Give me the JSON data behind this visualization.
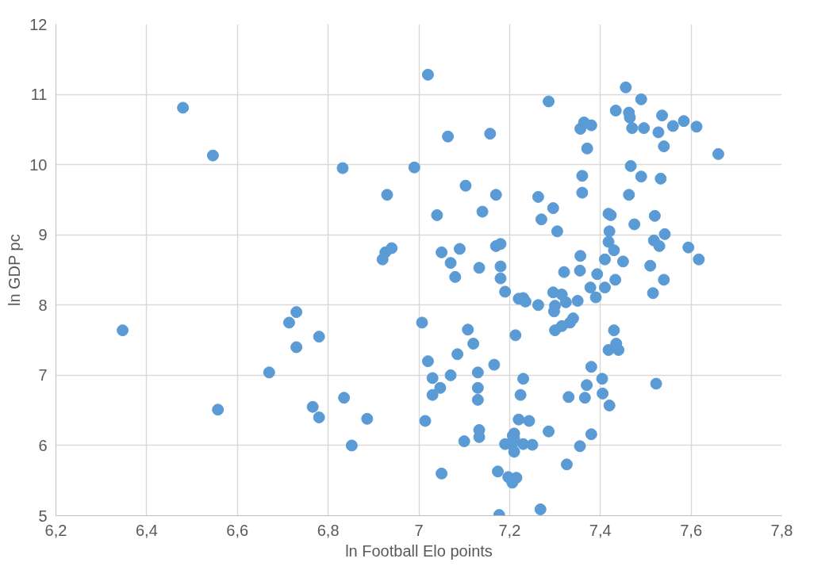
{
  "chart_data": {
    "type": "scatter",
    "xlabel": "ln Football Elo points",
    "ylabel": "ln GDP pc",
    "x": [
      6.347,
      6.48,
      6.546,
      6.557,
      6.67,
      6.714,
      6.73,
      6.73,
      6.766,
      6.78,
      6.78,
      6.832,
      6.835,
      6.852,
      6.886,
      6.92,
      6.926,
      6.93,
      6.94,
      6.99,
      7.007,
      7.014,
      7.02,
      7.02,
      7.03,
      7.03,
      7.04,
      7.047,
      7.05,
      7.05,
      7.064,
      7.07,
      7.07,
      7.08,
      7.085,
      7.09,
      7.1,
      7.103,
      7.108,
      7.12,
      7.13,
      7.13,
      7.13,
      7.133,
      7.133,
      7.133,
      7.14,
      7.157,
      7.166,
      7.17,
      7.17,
      7.174,
      7.18,
      7.18,
      7.18,
      7.177,
      7.19,
      7.19,
      7.197,
      7.205,
      7.206,
      7.207,
      7.21,
      7.21,
      7.21,
      7.213,
      7.215,
      7.22,
      7.22,
      7.224,
      7.23,
      7.23,
      7.23,
      7.235,
      7.243,
      7.25,
      7.263,
      7.263,
      7.27,
      7.268,
      7.286,
      7.286,
      7.296,
      7.296,
      7.298,
      7.3,
      7.3,
      7.305,
      7.315,
      7.315,
      7.32,
      7.324,
      7.326,
      7.33,
      7.333,
      7.34,
      7.35,
      7.355,
      7.355,
      7.356,
      7.356,
      7.36,
      7.36,
      7.364,
      7.37,
      7.366,
      7.371,
      7.38,
      7.378,
      7.38,
      7.38,
      7.39,
      7.393,
      7.41,
      7.404,
      7.405,
      7.41,
      7.418,
      7.418,
      7.418,
      7.42,
      7.42,
      7.423,
      7.43,
      7.43,
      7.433,
      7.435,
      7.434,
      7.44,
      7.456,
      7.45,
      7.463,
      7.463,
      7.465,
      7.467,
      7.47,
      7.475,
      7.49,
      7.49,
      7.496,
      7.51,
      7.516,
      7.518,
      7.523,
      7.52,
      7.528,
      7.53,
      7.533,
      7.536,
      7.54,
      7.54,
      7.542,
      7.56,
      7.584,
      7.594,
      7.612,
      7.617,
      7.66
    ],
    "values": [
      7.64,
      10.81,
      10.13,
      6.51,
      7.04,
      7.75,
      7.9,
      7.4,
      6.55,
      6.4,
      7.55,
      9.95,
      6.68,
      6.0,
      6.38,
      8.65,
      8.75,
      9.57,
      8.81,
      9.96,
      7.75,
      6.35,
      11.28,
      7.2,
      6.96,
      6.72,
      9.28,
      6.82,
      5.6,
      8.75,
      10.4,
      8.6,
      7.0,
      8.4,
      7.3,
      8.8,
      6.06,
      9.7,
      7.65,
      7.45,
      7.04,
      6.65,
      6.82,
      8.53,
      6.22,
      6.12,
      9.33,
      10.44,
      7.15,
      9.57,
      8.84,
      5.63,
      8.87,
      8.55,
      8.38,
      5.01,
      8.19,
      6.02,
      5.55,
      6.01,
      5.47,
      6.14,
      6.17,
      5.91,
      6.1,
      7.57,
      5.54,
      8.09,
      6.37,
      6.72,
      6.02,
      6.95,
      8.1,
      8.05,
      6.35,
      6.01,
      8.0,
      9.54,
      9.22,
      5.09,
      10.9,
      6.2,
      8.18,
      9.38,
      7.91,
      7.99,
      7.64,
      9.05,
      7.7,
      8.15,
      8.47,
      8.04,
      5.73,
      6.69,
      7.75,
      7.81,
      8.06,
      8.49,
      5.99,
      8.7,
      10.51,
      9.84,
      9.6,
      10.6,
      6.86,
      6.68,
      10.23,
      10.56,
      8.25,
      7.12,
      6.16,
      8.11,
      8.44,
      8.65,
      6.95,
      6.74,
      8.25,
      7.36,
      8.9,
      9.3,
      6.57,
      9.05,
      9.28,
      8.78,
      7.64,
      8.36,
      7.45,
      10.77,
      7.36,
      11.1,
      8.62,
      10.74,
      9.57,
      10.67,
      9.98,
      10.52,
      9.15,
      10.93,
      9.83,
      10.52,
      8.56,
      8.17,
      8.92,
      6.88,
      9.27,
      10.46,
      8.84,
      9.8,
      10.7,
      10.26,
      8.36,
      9.01,
      10.55,
      10.62,
      8.82,
      10.54,
      8.65,
      10.15
    ],
    "color": "#5b9bd5",
    "marker": "circle",
    "grid": true,
    "xlim": [
      6.2,
      7.8
    ],
    "ylim": [
      5,
      12
    ],
    "xticks": [
      {
        "value": 6.2,
        "label": "6,2"
      },
      {
        "value": 6.4,
        "label": "6,4"
      },
      {
        "value": 6.6,
        "label": "6,6"
      },
      {
        "value": 6.8,
        "label": "6,8"
      },
      7,
      {
        "value": 7.2,
        "label": "7,2"
      },
      {
        "value": 7.4,
        "label": "7,4"
      },
      {
        "value": 7.6,
        "label": "7,6"
      },
      {
        "value": 7.8,
        "label": "7,8"
      }
    ],
    "yticks": [
      5,
      6,
      7,
      8,
      9,
      10,
      11,
      12
    ]
  }
}
